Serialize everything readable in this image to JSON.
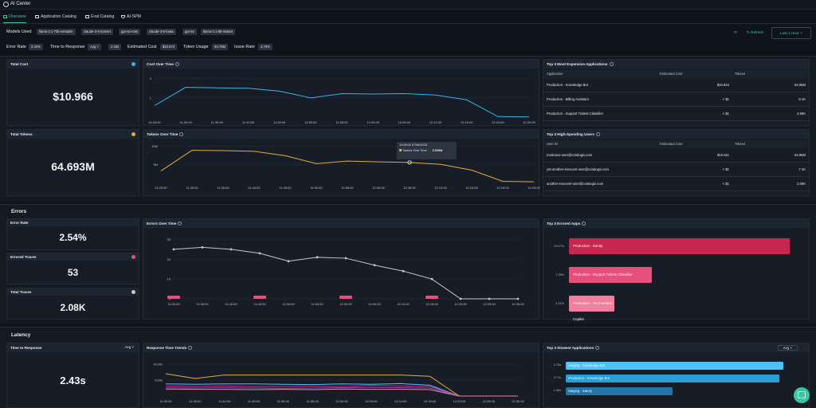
{
  "app": {
    "title": "AI Center"
  },
  "tabs": [
    "Overview",
    "Application Catalog",
    "Eval Catalog",
    "AI-SPM"
  ],
  "models": {
    "label": "Models Used",
    "items": [
      "llama-3.1-70b-versatile",
      "claude-3-5-sonnet",
      "gpt-4o-mini",
      "claude-3-5-haiku",
      "gpt-4o",
      "llama-3.1-8b-instant"
    ]
  },
  "actions": {
    "refresh": "Refresh",
    "time_range": "Last 1 Hour"
  },
  "summary": {
    "error_rate_label": "Error Rate",
    "error_rate": "2.42%",
    "ttr_label": "Time to Response",
    "ttr_mode": "Avg",
    "ttr": "2.43s",
    "cost_label": "Estimated Cost",
    "cost": "$10.974",
    "tokens_label": "Token Usage",
    "tokens": "64.70M",
    "issue_label": "Issue Rate",
    "issue": "4.70%"
  },
  "colors": {
    "accent": "#37c6a2",
    "cost": "#3bb3e6",
    "tokens": "#e8a93a",
    "errors": "#c9c9c9"
  },
  "total_cost": {
    "title": "Total Cost",
    "value": "$10.966"
  },
  "total_tokens": {
    "title": "Total Tokens",
    "value": "64.693M"
  },
  "cost_over_time": {
    "title": "Cost Over Time"
  },
  "tokens_over_time": {
    "title": "Tokens Over Time",
    "tooltip_time": "12:05:00 07/08/2025",
    "tooltip_series": "Tokens Over Time",
    "tooltip_value": "5.539M"
  },
  "expensive_apps": {
    "title": "Top 3 Most Expensive Applications",
    "headers": [
      "Application",
      "Estimated Cost",
      "Tokens"
    ],
    "rows": [
      [
        "Production - Knowledge Bot",
        "$10.824",
        "64.65M"
      ],
      [
        "Production - Billing Assistant",
        "< $1",
        "8.1K"
      ],
      [
        "Production - Support Tickets Classifier",
        "< $1",
        "4.96K"
      ]
    ]
  },
  "spending_users": {
    "title": "Top 3 High-Spending Users",
    "headers": [
      "User ID",
      "Estimated Cost",
      "Tokens"
    ],
    "rows": [
      [
        "malicious-user@coralogix.com",
        "$10.811",
        "64.65M"
      ],
      [
        "yet-another-innocent-user@coralogix.com",
        "< $1",
        "7.1K"
      ],
      [
        "another-innocent-user@coralogix.com",
        "< $1",
        "2.06K"
      ]
    ]
  },
  "errors": {
    "section_title": "Errors",
    "error_rate": {
      "title": "Error Rate",
      "value": "2.54%"
    },
    "errored_traces": {
      "title": "Errored Traces",
      "value": "53"
    },
    "total_traces": {
      "title": "Total Traces",
      "value": "2.08K"
    },
    "over_time_title": "Errors Over Time",
    "top_apps_title": "Top 3 Errored Apps",
    "top_apps": [
      {
        "pct": "19.47%",
        "name": "Production - Sandy",
        "value": 19.47,
        "color": "#c7264f"
      },
      {
        "pct": "7.28%",
        "name": "Production - Support Tickets Classifier",
        "value": 7.28,
        "color": "#e4507a"
      },
      {
        "pct": "4.01%",
        "name": "Production - Tech Writers Copilot",
        "value": 4.01,
        "color": "#ef7f9c"
      }
    ]
  },
  "latency": {
    "section_title": "Latency",
    "ttr_title": "Time to Response",
    "ttr_mode": "Avg",
    "ttr_value": "2.43s",
    "trends_title": "Response Time Trends",
    "slowest_title": "Top 3 Slowest Applications",
    "slowest_mode": "Avg",
    "slowest": [
      {
        "label": "3.78s",
        "name": "Staging - Knowledge Bot",
        "value": 3.78,
        "color": "#4fc3f7"
      },
      {
        "label": "3.71s",
        "name": "Production - Knowledge Bot",
        "value": 3.71,
        "color": "#2a9fd6"
      },
      {
        "label": "1.86s",
        "name": "Staging - Sandy",
        "value": 1.86,
        "color": "#2374a8"
      }
    ]
  },
  "chart_data": [
    {
      "type": "line",
      "title": "Cost Over Time",
      "x": [
        "11:25:00",
        "11:30:00",
        "11:35:00",
        "11:40:00",
        "11:45:00",
        "11:50:00",
        "11:55:00",
        "12:00:00",
        "12:05:00",
        "12:10:00",
        "12:15:00",
        "12:20:00",
        "12:25:00"
      ],
      "y_ticks": [
        "1",
        "2"
      ],
      "series": [
        {
          "values": [
            0.6,
            1.55,
            1.52,
            1.5,
            1.35,
            1.0,
            1.22,
            1.2,
            1.22,
            1.15,
            0.9,
            0.03,
            0.01
          ]
        }
      ],
      "ylim": [
        0,
        2.4
      ]
    },
    {
      "type": "line",
      "title": "Tokens Over Time",
      "x": [
        "11:25:00",
        "11:30:00",
        "11:35:00",
        "11:40:00",
        "11:45:00",
        "11:50:00",
        "11:55:00",
        "12:00:00",
        "12:05:00",
        "12:10:00",
        "12:15:00",
        "12:20:00",
        "12:25:00"
      ],
      "y_ticks": [
        "5M",
        "10M"
      ],
      "series": [
        {
          "name": "Tokens Over Time",
          "values": [
            3.2,
            8.9,
            8.8,
            8.6,
            7.4,
            5.2,
            5.9,
            5.7,
            5.539,
            5.0,
            3.4,
            0.3,
            0.2
          ]
        }
      ],
      "ylim": [
        0,
        11
      ]
    },
    {
      "type": "line",
      "title": "Errors Over Time",
      "x": [
        "11:30:00",
        "11:35:00",
        "11:40:00",
        "11:45:00",
        "11:50:00",
        "11:55:00",
        "12:00:00",
        "12:05:00",
        "12:10:00",
        "12:15:00",
        "12:20:00",
        "12:25:00",
        "12:30:00"
      ],
      "y_ticks": [
        "0",
        "10",
        "20",
        "30"
      ],
      "series": [
        {
          "name": "Errors",
          "values": [
            25,
            26,
            25,
            23,
            19,
            21,
            20.5,
            17,
            14,
            10,
            0,
            0,
            0
          ]
        }
      ],
      "ylim": [
        0,
        33
      ]
    },
    {
      "type": "line",
      "title": "Response Time Trends",
      "x": [
        "11:30:00",
        "11:35:00",
        "11:40:00",
        "11:45:00",
        "11:50:00",
        "11:55:00",
        "12:00:00",
        "12:05:00",
        "12:10:00",
        "12:15:00",
        "12:20:00",
        "12:25:00",
        "12:30:00"
      ],
      "y_ticks": [
        "5.00s",
        "10.00s"
      ],
      "series": [
        {
          "values": [
            7.0,
            5.5,
            6.6,
            6.6,
            6.6,
            6.6,
            6.6,
            6.6,
            6.6,
            6.2,
            0,
            0,
            0
          ],
          "color": "#e8a93a"
        },
        {
          "values": [
            3.8,
            3.7,
            3.8,
            3.8,
            3.7,
            3.6,
            3.8,
            3.7,
            3.9,
            3.4,
            0,
            0,
            0
          ],
          "color": "#4fc3f7"
        },
        {
          "values": [
            3.2,
            3.0,
            3.2,
            3.0,
            3.0,
            3.1,
            3.0,
            3.3,
            3.2,
            3.0,
            0,
            0,
            0
          ],
          "color": "#c0318a"
        },
        {
          "values": [
            2.6,
            2.5,
            2.6,
            2.5,
            2.4,
            2.5,
            2.6,
            2.7,
            2.6,
            2.5,
            0,
            0,
            0
          ],
          "color": "#7e57c2"
        },
        {
          "values": [
            2.2,
            2.1,
            2.1,
            2.0,
            2.1,
            2.0,
            2.2,
            2.1,
            2.1,
            2.0,
            0,
            0,
            0
          ],
          "color": "#ef7f9c"
        }
      ],
      "ylim": [
        0,
        12
      ]
    }
  ]
}
